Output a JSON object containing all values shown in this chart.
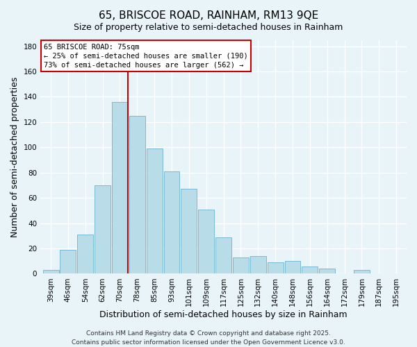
{
  "title": "65, BRISCOE ROAD, RAINHAM, RM13 9QE",
  "subtitle": "Size of property relative to semi-detached houses in Rainham",
  "xlabel": "Distribution of semi-detached houses by size in Rainham",
  "ylabel": "Number of semi-detached properties",
  "bar_labels": [
    "39sqm",
    "46sqm",
    "54sqm",
    "62sqm",
    "70sqm",
    "78sqm",
    "85sqm",
    "93sqm",
    "101sqm",
    "109sqm",
    "117sqm",
    "125sqm",
    "132sqm",
    "140sqm",
    "148sqm",
    "156sqm",
    "164sqm",
    "172sqm",
    "179sqm",
    "187sqm",
    "195sqm"
  ],
  "bar_values": [
    3,
    19,
    31,
    70,
    136,
    125,
    99,
    81,
    67,
    51,
    29,
    13,
    14,
    9,
    10,
    6,
    4,
    0,
    3,
    0,
    0
  ],
  "bar_color": "#b8dce8",
  "bar_edge_color": "#7ab8d4",
  "ylim": [
    0,
    185
  ],
  "yticks": [
    0,
    20,
    40,
    60,
    80,
    100,
    120,
    140,
    160,
    180
  ],
  "vline_color": "#cc0000",
  "annotation_title": "65 BRISCOE ROAD: 75sqm",
  "annotation_line1": "← 25% of semi-detached houses are smaller (190)",
  "annotation_line2": "73% of semi-detached houses are larger (562) →",
  "annotation_box_color": "#ffffff",
  "annotation_box_edge": "#cc0000",
  "footer1": "Contains HM Land Registry data © Crown copyright and database right 2025.",
  "footer2": "Contains public sector information licensed under the Open Government Licence v3.0.",
  "bg_color": "#e8f4f8",
  "grid_color": "#ffffff",
  "title_fontsize": 11,
  "subtitle_fontsize": 9,
  "axis_label_fontsize": 9,
  "tick_fontsize": 7.5,
  "footer_fontsize": 6.5
}
